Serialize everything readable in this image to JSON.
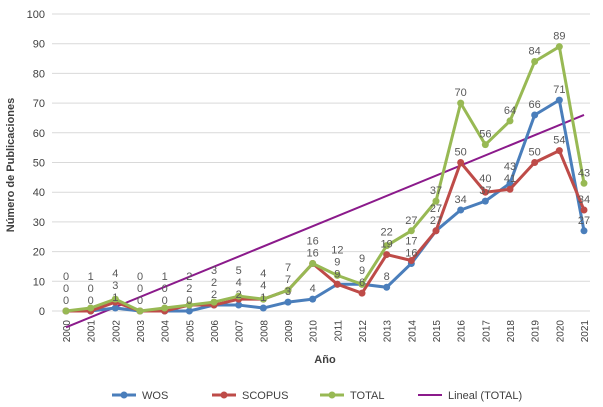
{
  "chart_data": {
    "type": "line",
    "title": "",
    "xlabel": "Año",
    "ylabel": "Número de Publicaciones",
    "ylim": [
      0,
      100
    ],
    "yticks": [
      0,
      10,
      20,
      30,
      40,
      50,
      60,
      70,
      80,
      90,
      100
    ],
    "x": [
      "2000",
      "2001",
      "2002",
      "2003",
      "2004",
      "2005",
      "2006",
      "2007",
      "2008",
      "2009",
      "2010",
      "2011",
      "2012",
      "2013",
      "2014",
      "2015",
      "2016",
      "2017",
      "2018",
      "2019",
      "2020",
      "2021"
    ],
    "series": [
      {
        "name": "WOS",
        "color": "#4a7ebb",
        "values": [
          0,
          0,
          1,
          0,
          0,
          0,
          2,
          2,
          1,
          3,
          4,
          9,
          9,
          8,
          16,
          27,
          34,
          37,
          43,
          66,
          71,
          27
        ]
      },
      {
        "name": "SCOPUS",
        "color": "#be4b48",
        "values": [
          0,
          0,
          3,
          0,
          0,
          2,
          2,
          4,
          4,
          7,
          16,
          9,
          6,
          19,
          17,
          27,
          50,
          40,
          41,
          50,
          54,
          34
        ]
      },
      {
        "name": "TOTAL",
        "color": "#98b954",
        "values": [
          0,
          1,
          4,
          0,
          1,
          2,
          3,
          5,
          4,
          7,
          16,
          12,
          9,
          22,
          27,
          37,
          70,
          56,
          64,
          84,
          89,
          43
        ]
      }
    ],
    "trendline": {
      "name": "Lineal (TOTAL)",
      "color": "#8b1a8b",
      "start": -5.5,
      "end": 66
    },
    "grid": true,
    "legend": "bottom"
  }
}
